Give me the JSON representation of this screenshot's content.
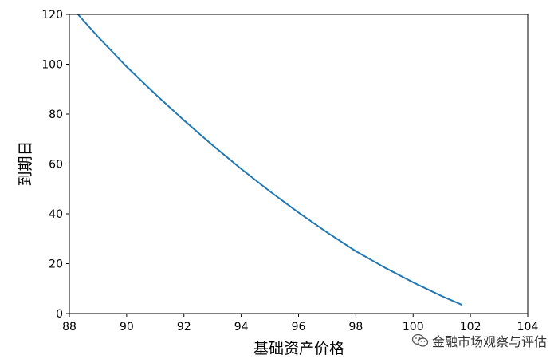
{
  "chart_data": {
    "type": "line",
    "title": "",
    "xlabel": "基础资产价格",
    "ylabel": "到期日",
    "xlim": [
      88,
      104
    ],
    "ylim": [
      0,
      120
    ],
    "xticks": [
      88,
      90,
      92,
      94,
      96,
      98,
      100,
      102,
      104
    ],
    "yticks": [
      0,
      20,
      40,
      60,
      80,
      100,
      120
    ],
    "grid": false,
    "legend": "none",
    "series": [
      {
        "color": "#1f77b4",
        "points": [
          [
            88.3,
            120
          ],
          [
            89.0,
            111
          ],
          [
            90.0,
            99
          ],
          [
            91.0,
            88
          ],
          [
            92.0,
            77.5
          ],
          [
            93.0,
            67.5
          ],
          [
            94.0,
            58
          ],
          [
            95.0,
            49
          ],
          [
            96.0,
            40.5
          ],
          [
            97.0,
            32.5
          ],
          [
            98.0,
            25
          ],
          [
            99.0,
            18.5
          ],
          [
            100.0,
            12.5
          ],
          [
            101.0,
            7
          ],
          [
            101.7,
            3.5
          ]
        ]
      }
    ]
  },
  "watermark": {
    "text": "金融市场观察与评估",
    "icon": "wechat-icon"
  }
}
